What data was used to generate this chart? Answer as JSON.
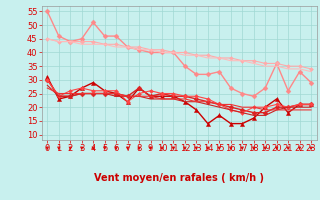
{
  "xlabel": "Vent moyen/en rafales ( km/h )",
  "x_ticks": [
    0,
    1,
    2,
    3,
    4,
    5,
    6,
    7,
    8,
    9,
    10,
    11,
    12,
    13,
    14,
    15,
    16,
    17,
    18,
    19,
    20,
    21,
    22,
    23
  ],
  "y_ticks": [
    10,
    15,
    20,
    25,
    30,
    35,
    40,
    45,
    50,
    55
  ],
  "ylim": [
    8,
    57
  ],
  "xlim": [
    -0.5,
    23.5
  ],
  "bg_color": "#c8f0ee",
  "grid_color": "#a0d8d4",
  "lines_pink": [
    {
      "data": [
        55,
        46,
        44,
        45,
        51,
        46,
        46,
        42,
        41,
        40,
        40,
        40,
        35,
        32,
        32,
        33,
        27,
        25,
        24,
        27,
        36,
        26,
        33,
        29
      ],
      "color": "#ff8888",
      "lw": 1.0,
      "marker": "D",
      "ms": 2.5
    },
    {
      "data": [
        45,
        44,
        44,
        44,
        44,
        43,
        43,
        42,
        42,
        41,
        41,
        40,
        40,
        39,
        39,
        38,
        38,
        37,
        37,
        36,
        36,
        35,
        35,
        34
      ],
      "color": "#ffaaaa",
      "lw": 0.8,
      "marker": "D",
      "ms": 2.0
    },
    {
      "data": [
        45,
        44,
        44,
        43,
        43,
        43,
        42,
        42,
        41,
        41,
        40,
        40,
        39,
        39,
        38,
        38,
        37,
        37,
        36,
        35,
        35,
        34,
        34,
        33
      ],
      "color": "#ffbbbb",
      "lw": 0.8,
      "marker": null,
      "ms": 0
    }
  ],
  "lines_red": [
    {
      "data": [
        31,
        23,
        24,
        27,
        29,
        26,
        25,
        22,
        27,
        24,
        24,
        24,
        22,
        19,
        14,
        17,
        14,
        14,
        16,
        20,
        23,
        18,
        21,
        21
      ],
      "color": "#cc0000",
      "lw": 1.0,
      "marker": "^",
      "ms": 3.0
    },
    {
      "data": [
        30,
        24,
        24,
        25,
        25,
        25,
        25,
        24,
        27,
        24,
        25,
        24,
        24,
        23,
        22,
        21,
        20,
        19,
        18,
        18,
        20,
        20,
        21,
        21
      ],
      "color": "#dd2222",
      "lw": 1.0,
      "marker": "D",
      "ms": 2.5
    },
    {
      "data": [
        30,
        24,
        26,
        27,
        26,
        26,
        26,
        22,
        25,
        26,
        25,
        25,
        24,
        24,
        23,
        21,
        19,
        18,
        20,
        20,
        21,
        20,
        21,
        21
      ],
      "color": "#ff4444",
      "lw": 0.8,
      "marker": "D",
      "ms": 2.0
    },
    {
      "data": [
        28,
        24,
        24,
        25,
        25,
        25,
        24,
        24,
        24,
        23,
        23,
        23,
        22,
        22,
        21,
        20,
        19,
        18,
        17,
        17,
        19,
        20,
        20,
        20
      ],
      "color": "#cc2222",
      "lw": 0.8,
      "marker": null,
      "ms": 0
    },
    {
      "data": [
        27,
        25,
        25,
        25,
        25,
        25,
        25,
        24,
        24,
        24,
        23,
        23,
        23,
        22,
        22,
        21,
        21,
        20,
        20,
        19,
        19,
        19,
        19,
        19
      ],
      "color": "#ee3333",
      "lw": 0.8,
      "marker": null,
      "ms": 0
    }
  ],
  "arrow_color": "#dd0000",
  "tick_label_color": "#dd0000",
  "axis_label_color": "#cc0000",
  "axis_label_fontsize": 7,
  "tick_label_fontsize": 6
}
